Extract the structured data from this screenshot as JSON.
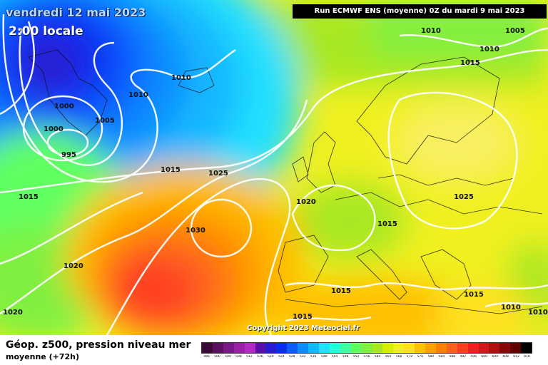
{
  "header": {
    "date": "vendredi 12 mai 2023",
    "time": "2:00 locale",
    "run": "Run ECMWF ENS (moyenne) 0Z du mardi 9 mai 2023"
  },
  "copyright": "Copyright 2023 Meteociel.fr",
  "footer": {
    "title": "Géop. z500, pression niveau mer",
    "subtitle": "moyenne  (+72h)"
  },
  "legend": {
    "labels": [
      "496",
      "500",
      "504",
      "508",
      "512",
      "516",
      "520",
      "524",
      "528",
      "532",
      "536",
      "540",
      "544",
      "548",
      "552",
      "556",
      "560",
      "564",
      "568",
      "572",
      "576",
      "580",
      "584",
      "588",
      "592",
      "596",
      "600",
      "604",
      "608",
      "612",
      "616"
    ],
    "colors": [
      "#3a0a3a",
      "#5a1060",
      "#7a1a88",
      "#9a22a8",
      "#b42ac4",
      "#5a10a8",
      "#2a1ad0",
      "#0a2ef0",
      "#0a5cff",
      "#0a8cff",
      "#12b8ff",
      "#20e0ff",
      "#20ffd8",
      "#40ffa0",
      "#60ff60",
      "#80f040",
      "#a8e820",
      "#d0f000",
      "#f0f020",
      "#ffe020",
      "#ffc000",
      "#ffa000",
      "#ff8000",
      "#ff6020",
      "#ff4020",
      "#f02020",
      "#d01818",
      "#b01010",
      "#880808",
      "#600000",
      "#000000"
    ]
  },
  "map": {
    "pressure_labels": [
      {
        "text": "1010"
      },
      {
        "text": "1005"
      },
      {
        "text": "1010"
      },
      {
        "text": "1015"
      },
      {
        "text": "1010"
      },
      {
        "text": "1010"
      },
      {
        "text": "1000"
      },
      {
        "text": "1005"
      },
      {
        "text": "1000"
      },
      {
        "text": "995"
      },
      {
        "text": "1015"
      },
      {
        "text": "1025"
      },
      {
        "text": "1015"
      },
      {
        "text": "1020"
      },
      {
        "text": "1030"
      },
      {
        "text": "1025"
      },
      {
        "text": "1015"
      },
      {
        "text": "1020"
      },
      {
        "text": "1015"
      },
      {
        "text": "1015"
      },
      {
        "text": "1015"
      },
      {
        "text": "1010"
      },
      {
        "text": "1010"
      },
      {
        "text": "1020"
      }
    ]
  }
}
